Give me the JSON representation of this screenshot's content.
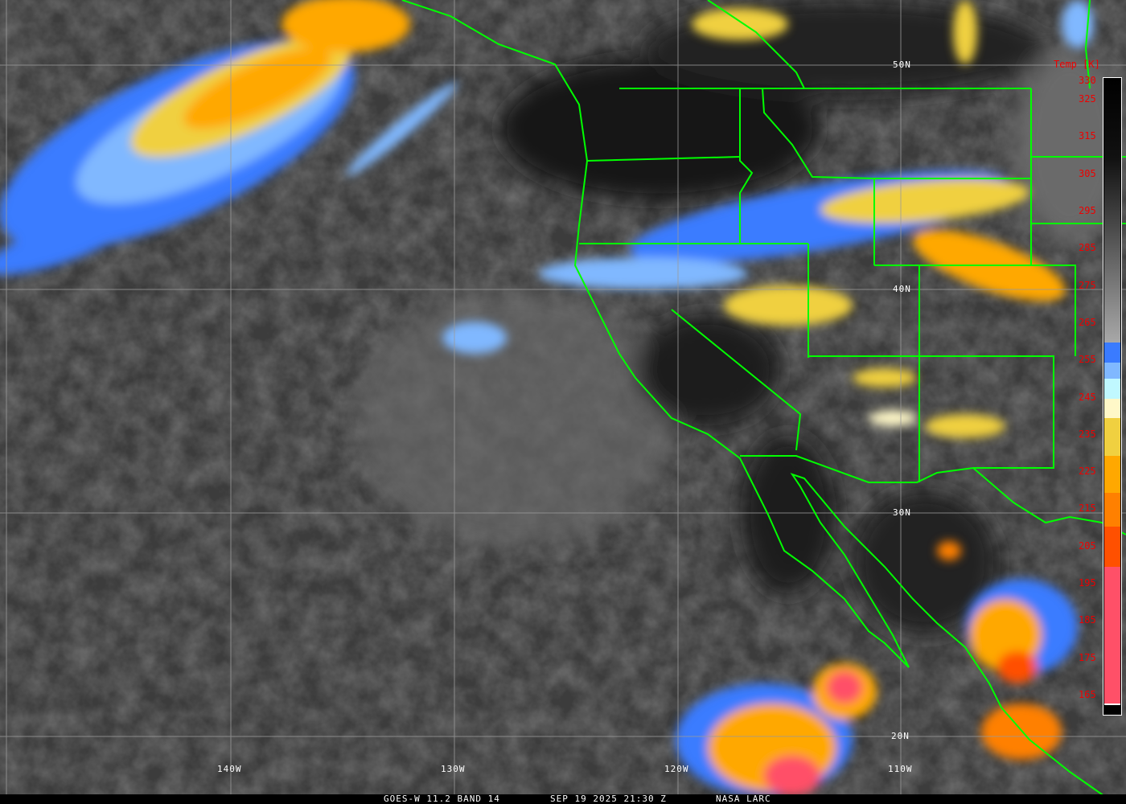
{
  "caption": {
    "product": "GOES-W 11.2 BAND 14",
    "datetime": "SEP 19 2025 21:30 Z",
    "credit": "NASA LARC"
  },
  "grid": {
    "latitudes": [
      "50N",
      "40N",
      "30N",
      "20N"
    ],
    "longitudes": [
      "140W",
      "130W",
      "120W",
      "110W"
    ]
  },
  "colorbar": {
    "title": "Temp [K]",
    "ticks": [
      "330",
      "325",
      "315",
      "305",
      "295",
      "285",
      "275",
      "265",
      "255",
      "245",
      "235",
      "225",
      "215",
      "205",
      "195",
      "185",
      "175",
      "165"
    ],
    "colors": {
      "warm_top": "#000000",
      "gray_low": "#a8a8a8",
      "blue": "#3a7bff",
      "light_blue": "#80b8ff",
      "pale_cyan": "#c0f8ff",
      "cream": "#fff8c8",
      "yellow": "#f0d040",
      "orange": "#ffa800",
      "dark_orange": "#ff8000",
      "red_orange": "#ff5000",
      "pink": "#ff5068"
    }
  },
  "colors": {
    "borders": "#00ff00",
    "gridlines": "#9a9a9a",
    "label_red": "#e00000"
  }
}
